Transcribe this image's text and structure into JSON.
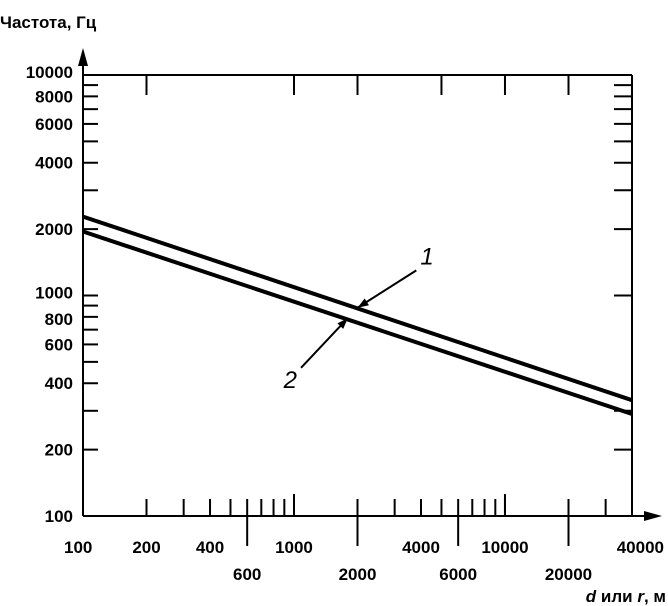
{
  "chart_data": {
    "type": "line",
    "ylabel": "Частота, Гц",
    "xlabel_parts": [
      {
        "text": "d",
        "italic": true
      },
      {
        "text": " или ",
        "italic": false
      },
      {
        "text": "r",
        "italic": true
      },
      {
        "text": ", м",
        "italic": false
      }
    ],
    "x_scale": "log",
    "y_scale": "log",
    "xlim": [
      100,
      40000
    ],
    "ylim": [
      100,
      10000
    ],
    "x_ticks_upper_row": [
      100,
      200,
      400,
      1000,
      4000,
      10000,
      40000
    ],
    "x_ticks_lower_row": [
      600,
      2000,
      6000,
      20000
    ],
    "y_tick_labels": [
      100,
      200,
      400,
      600,
      800,
      1000,
      2000,
      4000,
      6000,
      8000,
      10000
    ],
    "series": [
      {
        "label": "1",
        "x": [
          100,
          40000
        ],
        "y": [
          2280,
          335
        ]
      },
      {
        "label": "2",
        "x": [
          100,
          40000
        ],
        "y": [
          1950,
          290
        ]
      }
    ],
    "annotations": [
      {
        "text": "1",
        "series": "1",
        "x": 2000,
        "y": 880,
        "text_x": 3800,
        "text_y": 1300
      },
      {
        "text": "2",
        "series": "2",
        "x": 1800,
        "y": 790,
        "text_x": 1080,
        "text_y": 470
      }
    ],
    "grid": false,
    "legend": "none"
  }
}
